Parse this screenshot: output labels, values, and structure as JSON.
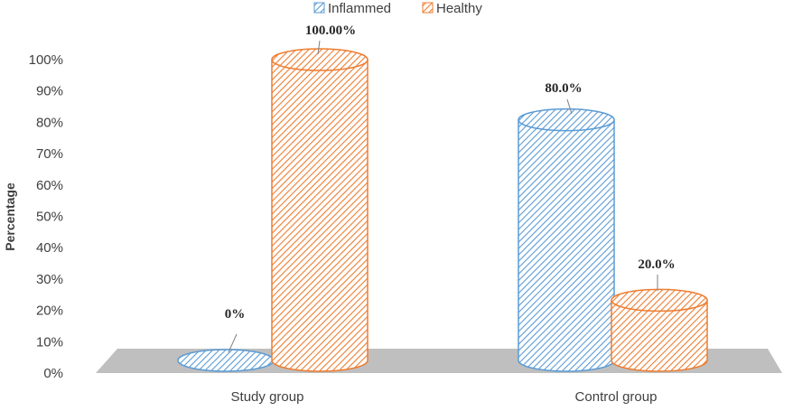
{
  "chart_data": {
    "type": "bar",
    "categories": [
      "Study group",
      "Control group"
    ],
    "series": [
      {
        "name": "Inflammed",
        "values": [
          0,
          80.0
        ],
        "labels": [
          "0%",
          "80.0%"
        ],
        "color": "#5B9BD5"
      },
      {
        "name": "Healthy",
        "values": [
          100.0,
          20.0
        ],
        "labels": [
          "100.00%",
          "20.0%"
        ],
        "color": "#ED7D31"
      }
    ],
    "ylabel": "Percentage",
    "xlabel": "",
    "ylim": [
      0,
      100
    ],
    "yticks": [
      "0%",
      "10%",
      "20%",
      "30%",
      "40%",
      "50%",
      "60%",
      "70%",
      "80%",
      "90%",
      "100%"
    ],
    "legend_position": "top",
    "style": "3d-cylinder-hatched",
    "floor_color": "#BFBFBF"
  }
}
